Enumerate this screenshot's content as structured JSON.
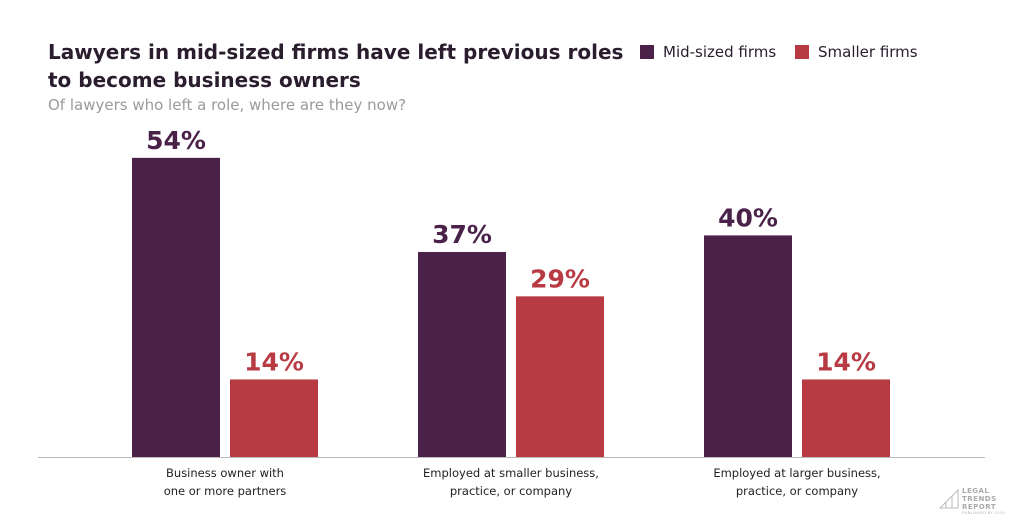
{
  "chart_data": {
    "type": "bar",
    "title": "Lawyers in mid-sized firms have left previous roles\nto become business owners",
    "subtitle": "Of lawyers who left a role, where are they now?",
    "categories": [
      "Business owner with\none or more partners",
      "Employed at smaller business,\npractice, or company",
      "Employed at larger business,\npractice, or company"
    ],
    "series": [
      {
        "name": "Mid-sized firms",
        "color": "#4a2249",
        "values": [
          54,
          37,
          40
        ],
        "value_labels": [
          "54%",
          "37%",
          "40%"
        ]
      },
      {
        "name": "Smaller firms",
        "color": "#b83a43",
        "values": [
          14,
          29,
          14
        ],
        "value_labels": [
          "14%",
          "29%",
          "14%"
        ]
      }
    ],
    "legend": "top-right",
    "logo": {
      "lines": [
        "LEGAL",
        "TRENDS",
        "REPORT"
      ],
      "sub": "PUBLISHED BY CLIO"
    }
  }
}
